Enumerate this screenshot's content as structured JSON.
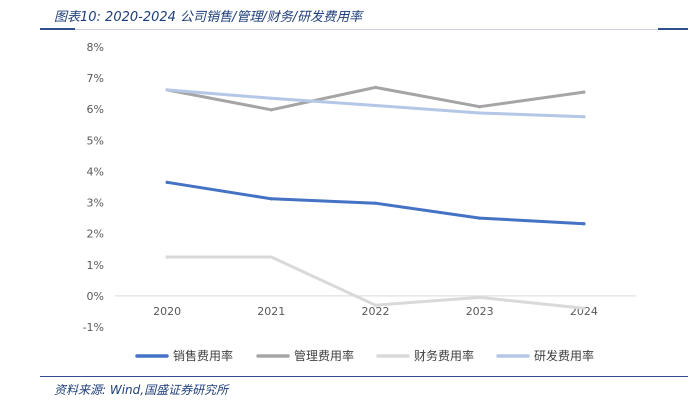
{
  "figure": {
    "title": "图表10:  2020-2024 公司销售/管理/财务/研发费用率",
    "source": "资料来源:  Wind,国盛证券研究所"
  },
  "chart_data": {
    "type": "line",
    "categories": [
      "2020",
      "2021",
      "2022",
      "2023",
      "2024"
    ],
    "series": [
      {
        "name": "销售费用率",
        "values": [
          3.65,
          3.12,
          2.98,
          2.5,
          2.32
        ],
        "color": "#4472c4",
        "width": 3
      },
      {
        "name": "管理费用率",
        "values": [
          6.62,
          5.98,
          6.7,
          6.08,
          6.55
        ],
        "color": "#a5a5a5",
        "width": 3
      },
      {
        "name": "财务费用率",
        "values": [
          1.25,
          1.25,
          -0.3,
          -0.05,
          -0.4
        ],
        "color": "#d9d9d9",
        "width": 3
      },
      {
        "name": "研发费用率",
        "values": [
          6.62,
          6.35,
          6.12,
          5.88,
          5.76
        ],
        "color": "#b4c7e7",
        "width": 3
      }
    ],
    "ylim": [
      -1,
      8
    ],
    "yticks": [
      8,
      7,
      6,
      5,
      4,
      3,
      2,
      1,
      0,
      -1
    ],
    "ytick_labels": [
      "8%",
      "7%",
      "6%",
      "5%",
      "4%",
      "3%",
      "2%",
      "1%",
      "0%",
      "-1%"
    ],
    "grid": false,
    "legend_position": "bottom",
    "xlabel": "",
    "ylabel": ""
  }
}
